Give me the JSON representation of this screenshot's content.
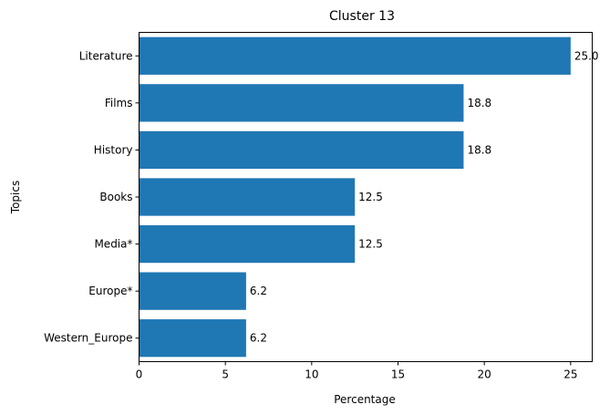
{
  "chart_data": {
    "type": "bar",
    "orientation": "horizontal",
    "title": "Cluster 13",
    "xlabel": "Percentage",
    "ylabel": "Topics",
    "categories": [
      "Literature",
      "Films",
      "History",
      "Books",
      "Media*",
      "Europe*",
      "Western_Europe"
    ],
    "values": [
      25.0,
      18.8,
      18.8,
      12.5,
      12.5,
      6.2,
      6.2
    ],
    "value_labels": [
      "25.0",
      "18.8",
      "18.8",
      "12.5",
      "12.5",
      "6.2",
      "6.2"
    ],
    "xlim": [
      0,
      26.25
    ],
    "xticks": [
      0,
      5,
      10,
      15,
      20,
      25
    ],
    "grid": false,
    "bar_color": "#1f77b4"
  }
}
